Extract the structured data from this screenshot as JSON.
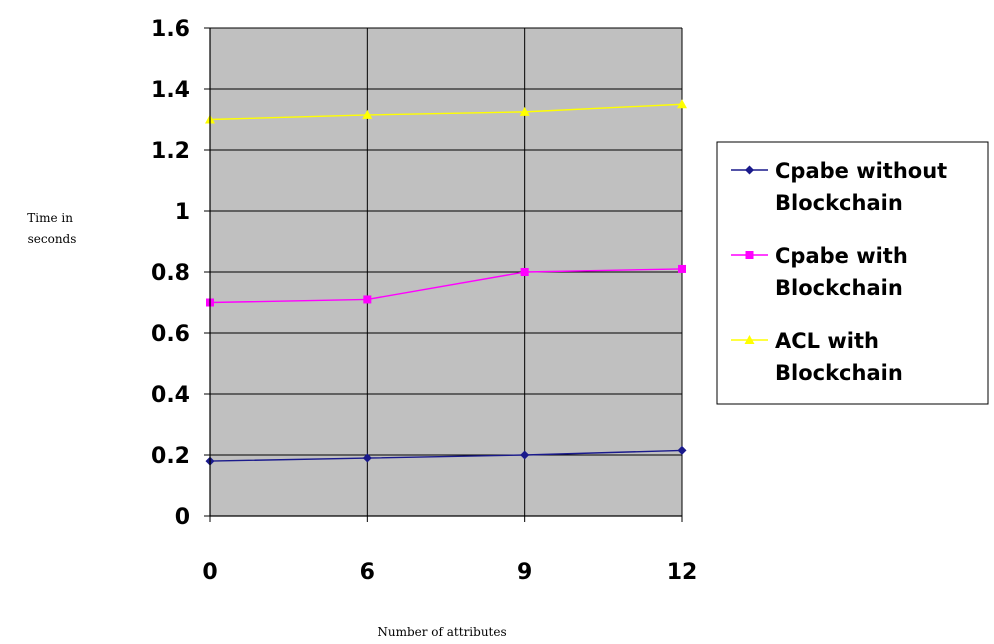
{
  "chart_data": {
    "type": "line",
    "title": "",
    "xlabel": "Number of attributes",
    "ylabel": [
      "Time in",
      "seconds"
    ],
    "categories": [
      "0",
      "6",
      "9",
      "12"
    ],
    "yticks": [
      "0",
      "0.2",
      "0.4",
      "0.6",
      "0.8",
      "1",
      "1.2",
      "1.4",
      "1.6"
    ],
    "ylim": [
      0,
      1.6
    ],
    "grid": true,
    "legend_position": "right",
    "plot_background": "#c0c0c0",
    "series": [
      {
        "name": [
          "Cpabe without",
          "Blockchain"
        ],
        "values": [
          0.18,
          0.19,
          0.2,
          0.215
        ],
        "color": "#1a1a8c",
        "marker": "diamond"
      },
      {
        "name": [
          "Cpabe with",
          "Blockchain"
        ],
        "values": [
          0.7,
          0.71,
          0.8,
          0.81
        ],
        "color": "#ff00ff",
        "marker": "square"
      },
      {
        "name": [
          "ACL with",
          "Blockchain"
        ],
        "values": [
          1.3,
          1.315,
          1.325,
          1.35
        ],
        "color": "#ffff00",
        "marker": "triangle"
      }
    ]
  }
}
